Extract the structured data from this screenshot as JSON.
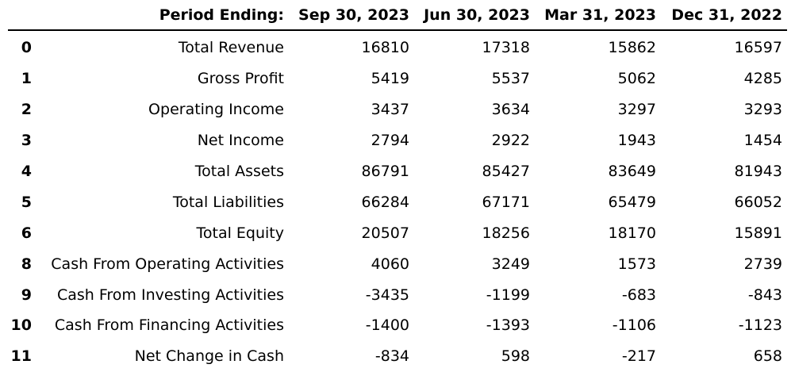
{
  "table": {
    "header": {
      "index_label": "",
      "label": "Period Ending:",
      "periods": [
        "Sep 30, 2023",
        "Jun 30, 2023",
        "Mar 31, 2023",
        "Dec 31, 2022"
      ]
    },
    "rows": [
      {
        "index": "0",
        "label": "Total Revenue",
        "values": [
          "16810",
          "17318",
          "15862",
          "16597"
        ]
      },
      {
        "index": "1",
        "label": "Gross Profit",
        "values": [
          "5419",
          "5537",
          "5062",
          "4285"
        ]
      },
      {
        "index": "2",
        "label": "Operating Income",
        "values": [
          "3437",
          "3634",
          "3297",
          "3293"
        ]
      },
      {
        "index": "3",
        "label": "Net Income",
        "values": [
          "2794",
          "2922",
          "1943",
          "1454"
        ]
      },
      {
        "index": "4",
        "label": "Total Assets",
        "values": [
          "86791",
          "85427",
          "83649",
          "81943"
        ]
      },
      {
        "index": "5",
        "label": "Total Liabilities",
        "values": [
          "66284",
          "67171",
          "65479",
          "66052"
        ]
      },
      {
        "index": "6",
        "label": "Total Equity",
        "values": [
          "20507",
          "18256",
          "18170",
          "15891"
        ]
      },
      {
        "index": "8",
        "label": "Cash From Operating Activities",
        "values": [
          "4060",
          "3249",
          "1573",
          "2739"
        ]
      },
      {
        "index": "9",
        "label": "Cash From Investing Activities",
        "values": [
          "-3435",
          "-1199",
          "-683",
          "-843"
        ]
      },
      {
        "index": "10",
        "label": "Cash From Financing Activities",
        "values": [
          "-1400",
          "-1393",
          "-1106",
          "-1123"
        ]
      },
      {
        "index": "11",
        "label": "Net Change in Cash",
        "values": [
          "-834",
          "598",
          "-217",
          "658"
        ]
      }
    ]
  }
}
